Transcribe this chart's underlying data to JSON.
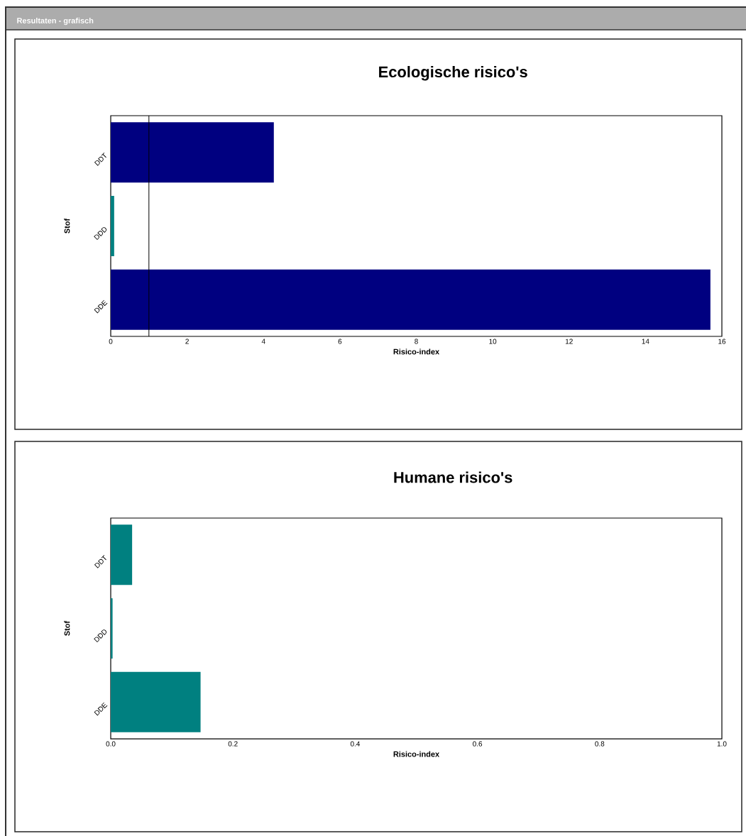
{
  "chart_data": [
    {
      "type": "bar",
      "orientation": "horizontal",
      "title": "Ecologische risico's",
      "xlabel": "Risico-index",
      "ylabel": "Stof",
      "annotations": [
        "Resultaten - grafisch"
      ],
      "categories": [
        "DDT",
        "DDD",
        "DDE"
      ],
      "values": [
        4.27,
        0.09,
        15.7
      ],
      "colors": [
        "#000080",
        "#008080",
        "#000080"
      ],
      "xlim": [
        0,
        16
      ],
      "xticks": [
        0,
        2,
        4,
        6,
        8,
        10,
        12,
        14,
        16
      ],
      "ref_lines": [
        {
          "axis": "x",
          "value": 1,
          "color": "#000000"
        }
      ]
    },
    {
      "type": "bar",
      "orientation": "horizontal",
      "title": "Humane risico's",
      "xlabel": "Risico-index",
      "ylabel": "Stof",
      "categories": [
        "DDT",
        "DDD",
        "DDE"
      ],
      "values": [
        0.035,
        0.003,
        0.147
      ],
      "colors": [
        "#008080",
        "#008080",
        "#008080"
      ],
      "xlim": [
        0,
        1
      ],
      "xticks": [
        {
          "value": 0,
          "label": "0.0"
        },
        0.2,
        0.4,
        0.6,
        0.8,
        {
          "value": 1,
          "label": "1.0"
        }
      ]
    }
  ]
}
